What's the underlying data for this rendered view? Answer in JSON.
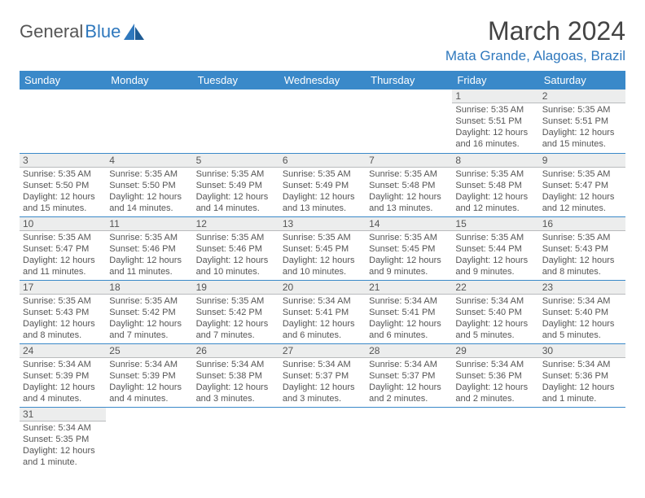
{
  "logo": {
    "text1": "General",
    "text2": "Blue"
  },
  "title": "March 2024",
  "location": "Mata Grande, Alagoas, Brazil",
  "colors": {
    "header_bg": "#3a89c9",
    "accent": "#2f78bd",
    "daynum_bg": "#eceded",
    "text": "#555555"
  },
  "daysOfWeek": [
    "Sunday",
    "Monday",
    "Tuesday",
    "Wednesday",
    "Thursday",
    "Friday",
    "Saturday"
  ],
  "weeks": [
    [
      null,
      null,
      null,
      null,
      null,
      {
        "n": "1",
        "sr": "5:35 AM",
        "ss": "5:51 PM",
        "dl": "12 hours and 16 minutes."
      },
      {
        "n": "2",
        "sr": "5:35 AM",
        "ss": "5:51 PM",
        "dl": "12 hours and 15 minutes."
      }
    ],
    [
      {
        "n": "3",
        "sr": "5:35 AM",
        "ss": "5:50 PM",
        "dl": "12 hours and 15 minutes."
      },
      {
        "n": "4",
        "sr": "5:35 AM",
        "ss": "5:50 PM",
        "dl": "12 hours and 14 minutes."
      },
      {
        "n": "5",
        "sr": "5:35 AM",
        "ss": "5:49 PM",
        "dl": "12 hours and 14 minutes."
      },
      {
        "n": "6",
        "sr": "5:35 AM",
        "ss": "5:49 PM",
        "dl": "12 hours and 13 minutes."
      },
      {
        "n": "7",
        "sr": "5:35 AM",
        "ss": "5:48 PM",
        "dl": "12 hours and 13 minutes."
      },
      {
        "n": "8",
        "sr": "5:35 AM",
        "ss": "5:48 PM",
        "dl": "12 hours and 12 minutes."
      },
      {
        "n": "9",
        "sr": "5:35 AM",
        "ss": "5:47 PM",
        "dl": "12 hours and 12 minutes."
      }
    ],
    [
      {
        "n": "10",
        "sr": "5:35 AM",
        "ss": "5:47 PM",
        "dl": "12 hours and 11 minutes."
      },
      {
        "n": "11",
        "sr": "5:35 AM",
        "ss": "5:46 PM",
        "dl": "12 hours and 11 minutes."
      },
      {
        "n": "12",
        "sr": "5:35 AM",
        "ss": "5:46 PM",
        "dl": "12 hours and 10 minutes."
      },
      {
        "n": "13",
        "sr": "5:35 AM",
        "ss": "5:45 PM",
        "dl": "12 hours and 10 minutes."
      },
      {
        "n": "14",
        "sr": "5:35 AM",
        "ss": "5:45 PM",
        "dl": "12 hours and 9 minutes."
      },
      {
        "n": "15",
        "sr": "5:35 AM",
        "ss": "5:44 PM",
        "dl": "12 hours and 9 minutes."
      },
      {
        "n": "16",
        "sr": "5:35 AM",
        "ss": "5:43 PM",
        "dl": "12 hours and 8 minutes."
      }
    ],
    [
      {
        "n": "17",
        "sr": "5:35 AM",
        "ss": "5:43 PM",
        "dl": "12 hours and 8 minutes."
      },
      {
        "n": "18",
        "sr": "5:35 AM",
        "ss": "5:42 PM",
        "dl": "12 hours and 7 minutes."
      },
      {
        "n": "19",
        "sr": "5:35 AM",
        "ss": "5:42 PM",
        "dl": "12 hours and 7 minutes."
      },
      {
        "n": "20",
        "sr": "5:34 AM",
        "ss": "5:41 PM",
        "dl": "12 hours and 6 minutes."
      },
      {
        "n": "21",
        "sr": "5:34 AM",
        "ss": "5:41 PM",
        "dl": "12 hours and 6 minutes."
      },
      {
        "n": "22",
        "sr": "5:34 AM",
        "ss": "5:40 PM",
        "dl": "12 hours and 5 minutes."
      },
      {
        "n": "23",
        "sr": "5:34 AM",
        "ss": "5:40 PM",
        "dl": "12 hours and 5 minutes."
      }
    ],
    [
      {
        "n": "24",
        "sr": "5:34 AM",
        "ss": "5:39 PM",
        "dl": "12 hours and 4 minutes."
      },
      {
        "n": "25",
        "sr": "5:34 AM",
        "ss": "5:39 PM",
        "dl": "12 hours and 4 minutes."
      },
      {
        "n": "26",
        "sr": "5:34 AM",
        "ss": "5:38 PM",
        "dl": "12 hours and 3 minutes."
      },
      {
        "n": "27",
        "sr": "5:34 AM",
        "ss": "5:37 PM",
        "dl": "12 hours and 3 minutes."
      },
      {
        "n": "28",
        "sr": "5:34 AM",
        "ss": "5:37 PM",
        "dl": "12 hours and 2 minutes."
      },
      {
        "n": "29",
        "sr": "5:34 AM",
        "ss": "5:36 PM",
        "dl": "12 hours and 2 minutes."
      },
      {
        "n": "30",
        "sr": "5:34 AM",
        "ss": "5:36 PM",
        "dl": "12 hours and 1 minute."
      }
    ],
    [
      {
        "n": "31",
        "sr": "5:34 AM",
        "ss": "5:35 PM",
        "dl": "12 hours and 1 minute."
      },
      null,
      null,
      null,
      null,
      null,
      null
    ]
  ],
  "labels": {
    "sunrise": "Sunrise: ",
    "sunset": "Sunset: ",
    "daylight": "Daylight: "
  }
}
